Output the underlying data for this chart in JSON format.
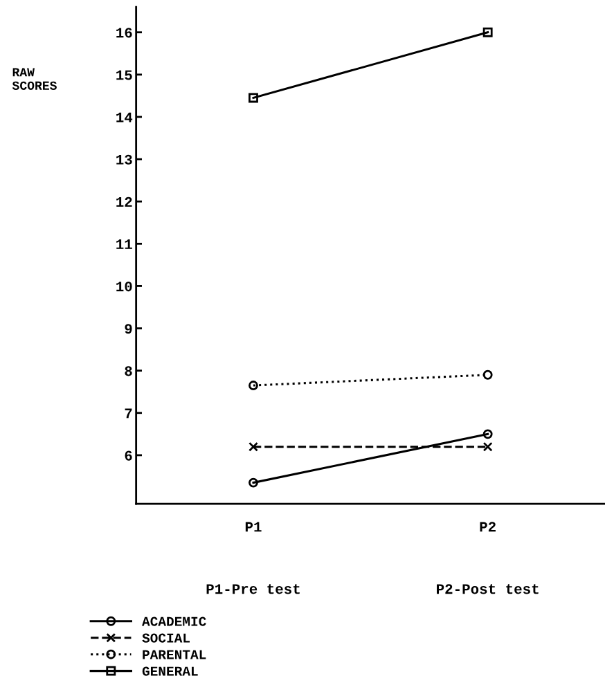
{
  "chart_data": {
    "type": "line",
    "ylabel": "RAW\nSCORES",
    "categories": [
      "P1",
      "P2"
    ],
    "ylim": [
      4.85,
      16.6
    ],
    "yticks": [
      6,
      7,
      8,
      9,
      10,
      11,
      12,
      13,
      14,
      15,
      16
    ],
    "grid": false,
    "legend": "bottom left",
    "series": [
      {
        "name": "ACADEMIC",
        "color": "#000000",
        "values": [
          5.35,
          6.5
        ],
        "marker": "circle",
        "line_style": "solid"
      },
      {
        "name": "SOCIAL",
        "color": "#000000",
        "values": [
          6.2,
          6.2
        ],
        "marker": "cross",
        "line_style": "dashed"
      },
      {
        "name": "PARENTAL",
        "color": "#000000",
        "values": [
          7.65,
          7.9
        ],
        "marker": "circle",
        "line_style": "dotted"
      },
      {
        "name": "GENERAL",
        "color": "#000000",
        "values": [
          14.45,
          16.0
        ],
        "marker": "square",
        "line_style": "solid"
      }
    ],
    "annotations": [
      "P1-Pre test",
      "P2-Post test"
    ]
  }
}
